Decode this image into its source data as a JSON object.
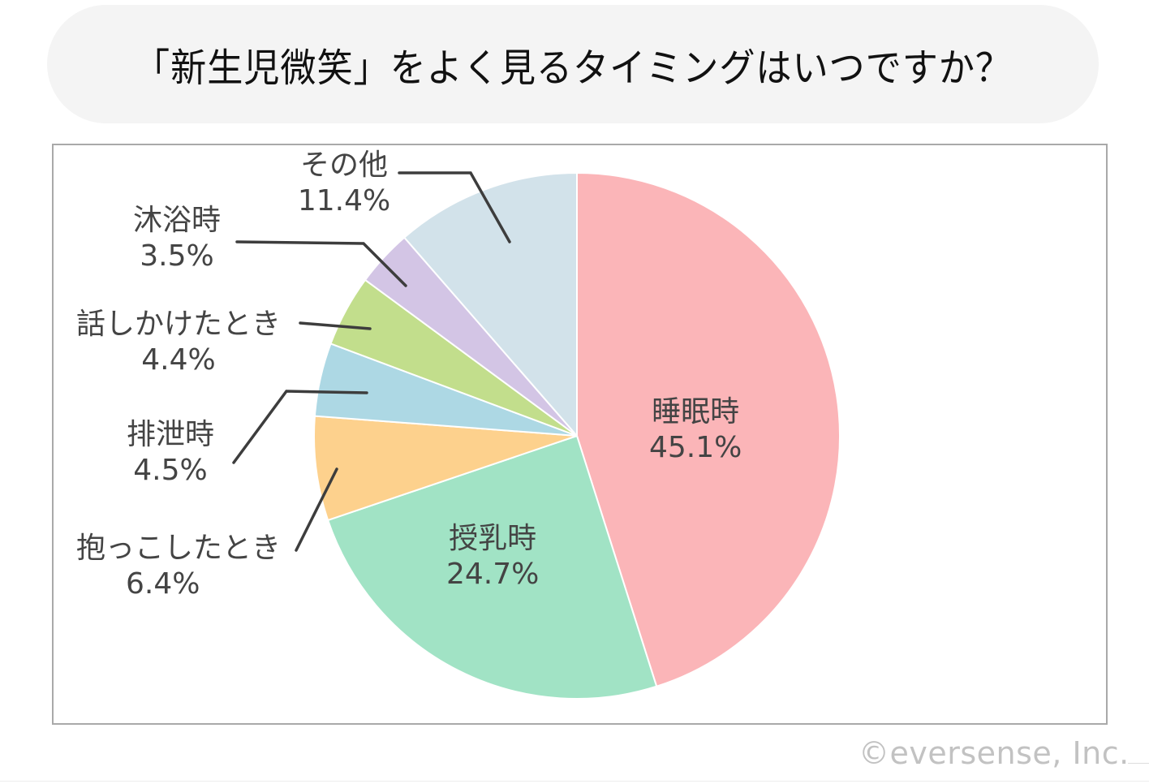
{
  "title": "「新生児微笑」をよく見るタイミングはいつですか？",
  "copyright": "©eversense, Inc.",
  "chart_data": {
    "type": "pie",
    "title": "「新生児微笑」をよく見るタイミングはいつですか？",
    "start_angle": "12 o'clock",
    "direction": "clockwise",
    "unit": "%",
    "categories": [
      "睡眠時",
      "授乳時",
      "抱っこしたとき",
      "排泄時",
      "話しかけたとき",
      "沐浴時",
      "その他"
    ],
    "values": [
      45.1,
      24.7,
      6.4,
      4.5,
      4.4,
      3.5,
      11.4
    ],
    "colors": [
      "#fbb5b8",
      "#a1e3c5",
      "#fdd18d",
      "#add8e4",
      "#c2de8c",
      "#d3c5e5",
      "#d2e2ea"
    ],
    "labels": [
      {
        "name": "睡眠時",
        "pct": "45.1%",
        "position": "inside"
      },
      {
        "name": "授乳時",
        "pct": "24.7%",
        "position": "inside"
      },
      {
        "name": "抱っこしたとき",
        "pct": "6.4%",
        "position": "outside-leader"
      },
      {
        "name": "排泄時",
        "pct": "4.5%",
        "position": "outside-leader"
      },
      {
        "name": "話しかけたとき",
        "pct": "4.4%",
        "position": "outside-leader"
      },
      {
        "name": "沐浴時",
        "pct": "3.5%",
        "position": "outside-leader"
      },
      {
        "name": "その他",
        "pct": "11.4%",
        "position": "outside-leader"
      }
    ],
    "legend": "none",
    "label_color": "#444444",
    "slice_border_color": "#ffffff"
  }
}
